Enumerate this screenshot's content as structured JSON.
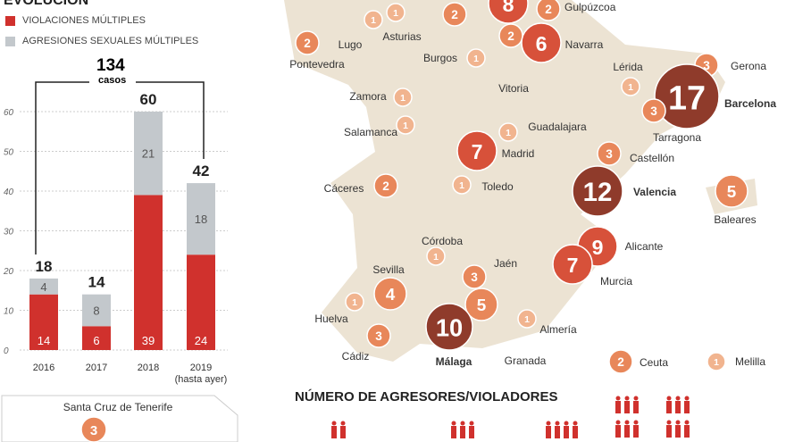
{
  "title": "EVOLUCIÓN",
  "legend": {
    "violaciones": "VIOLACIONES MÚLTIPLES",
    "agresiones": "AGRESIONES SEXUALES MÚLTIPLES"
  },
  "total": {
    "value": "134",
    "label": "casos"
  },
  "colors": {
    "violaciones": "#d0312d",
    "agresiones": "#c3c8cc",
    "map": "#ece3d3",
    "c1": "#f1b48f",
    "c2": "#e8875a",
    "c3": "#d7513a",
    "c4": "#8f3b2b"
  },
  "chart_data": {
    "type": "bar",
    "stacked": true,
    "categories": [
      "2016",
      "2017",
      "2018",
      "2019"
    ],
    "category_sublabels": [
      "",
      "",
      "",
      "(hasta ayer)"
    ],
    "series": [
      {
        "name": "VIOLACIONES MÚLTIPLES",
        "values": [
          14,
          6,
          39,
          24
        ]
      },
      {
        "name": "AGRESIONES SEXUALES MÚLTIPLES",
        "values": [
          4,
          8,
          21,
          18
        ]
      }
    ],
    "totals": [
      18,
      14,
      60,
      42
    ],
    "ylim": [
      0,
      60
    ],
    "yticks": [
      0,
      10,
      20,
      30,
      40,
      50,
      60
    ],
    "grid": true
  },
  "map": {
    "cities": [
      {
        "name": "Gulpúzcoa",
        "value": 2
      },
      {
        "name": "",
        "value": 1
      },
      {
        "name": "Asturias",
        "value": 2
      },
      {
        "name": "",
        "value": 8
      },
      {
        "name": "Lugo",
        "value": 1
      },
      {
        "name": "Pontevedra",
        "value": 2
      },
      {
        "name": "Vitoria",
        "value": 2
      },
      {
        "name": "Navarra",
        "value": 6
      },
      {
        "name": "Burgos",
        "value": 1
      },
      {
        "name": "Lérida",
        "value": 1
      },
      {
        "name": "Gerona",
        "value": 3
      },
      {
        "name": "Barcelona",
        "value": 17
      },
      {
        "name": "Tarragona",
        "value": 3
      },
      {
        "name": "Zamora",
        "value": 1
      },
      {
        "name": "Salamanca",
        "value": 1
      },
      {
        "name": "Guadalajara",
        "value": 1
      },
      {
        "name": "Madrid",
        "value": 7
      },
      {
        "name": "Castellón",
        "value": 3
      },
      {
        "name": "Cáceres",
        "value": 2
      },
      {
        "name": "Toledo",
        "value": 1
      },
      {
        "name": "Valencia",
        "value": 12
      },
      {
        "name": "Baleares",
        "value": 5
      },
      {
        "name": "Córdoba",
        "value": 1
      },
      {
        "name": "Alicante",
        "value": 9
      },
      {
        "name": "Murcia",
        "value": 7
      },
      {
        "name": "Sevilla",
        "value": 4
      },
      {
        "name": "Jaén",
        "value": 3
      },
      {
        "name": "Granada",
        "value": 5
      },
      {
        "name": "Huelva",
        "value": 1
      },
      {
        "name": "Málaga",
        "value": 10
      },
      {
        "name": "Almería",
        "value": 1
      },
      {
        "name": "Cádiz",
        "value": 3
      },
      {
        "name": "Ceuta",
        "value": 2
      },
      {
        "name": "Melilla",
        "value": 1
      }
    ],
    "canarias": {
      "name": "Santa Cruz de Tenerife",
      "value": 3
    }
  },
  "agresores_title": "NÚMERO DE AGRESORES/VIOLADORES"
}
